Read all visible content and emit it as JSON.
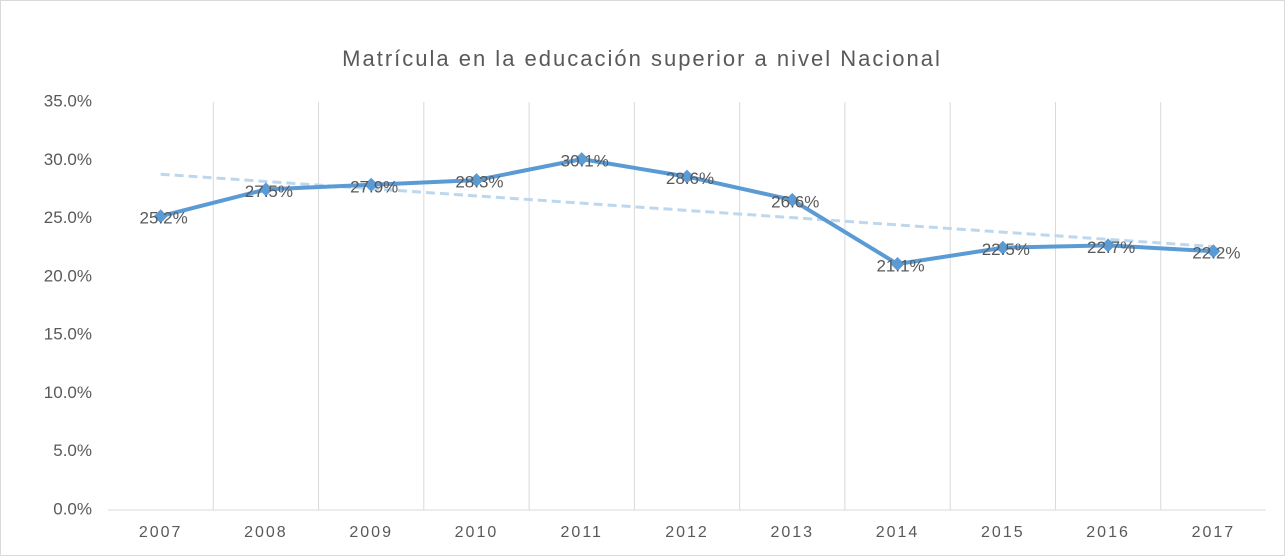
{
  "chart_data": {
    "type": "line",
    "title": "Matrícula en la educación superior a nivel Nacional",
    "categories": [
      "2007",
      "2008",
      "2009",
      "2010",
      "2011",
      "2012",
      "2013",
      "2014",
      "2015",
      "2016",
      "2017"
    ],
    "series": [
      {
        "name": "Matrícula",
        "color": "#5b9bd5",
        "values": [
          25.2,
          27.5,
          27.9,
          28.3,
          30.1,
          28.6,
          26.6,
          21.1,
          22.5,
          22.7,
          22.2
        ],
        "value_labels": [
          "25.2%",
          "27.5%",
          "27.9%",
          "28.3%",
          "30.1%",
          "28.6%",
          "26.6%",
          "21.1%",
          "22.5%",
          "22.7%",
          "22.2%"
        ]
      }
    ],
    "ylim": [
      0,
      35
    ],
    "yticks": [
      {
        "value": 0,
        "label": "0.0%"
      },
      {
        "value": 5,
        "label": "5.0%"
      },
      {
        "value": 10,
        "label": "10.0%"
      },
      {
        "value": 15,
        "label": "15.0%"
      },
      {
        "value": 20,
        "label": "20.0%"
      },
      {
        "value": 25,
        "label": "25.0%"
      },
      {
        "value": 30,
        "label": "30.0%"
      },
      {
        "value": 35,
        "label": "35.0%"
      }
    ],
    "grid": "x",
    "trendline": "linear",
    "trendline_color": "#bdd7ee"
  }
}
